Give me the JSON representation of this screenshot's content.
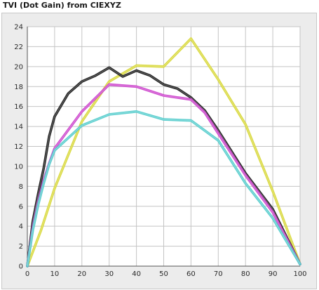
{
  "title": "TVI (Dot Gain) from CIEXYZ",
  "chart_data": {
    "type": "line",
    "title": "TVI (Dot Gain) from CIEXYZ",
    "xlabel": "",
    "ylabel": "",
    "xlim": [
      0,
      100
    ],
    "ylim": [
      0,
      24
    ],
    "xticks": [
      0,
      10,
      20,
      30,
      40,
      50,
      60,
      70,
      80,
      90,
      100
    ],
    "yticks": [
      0,
      2,
      4,
      6,
      8,
      10,
      12,
      14,
      16,
      18,
      20,
      22,
      24
    ],
    "grid": true,
    "legend": "none",
    "series": [
      {
        "color": "#d8d83a",
        "x": [
          0,
          5,
          10,
          20,
          30,
          40,
          50,
          60,
          70,
          80,
          90,
          100
        ],
        "y": [
          0,
          3.6,
          7.8,
          14.5,
          18.5,
          20.1,
          20.0,
          22.8,
          18.7,
          14.2,
          7.5,
          0.2
        ]
      },
      {
        "color": "#1a1a1a",
        "x": [
          0,
          2,
          4,
          6,
          8,
          10,
          15,
          20,
          25,
          30,
          35,
          40,
          45,
          50,
          55,
          60,
          65,
          70,
          80,
          90,
          100
        ],
        "y": [
          0,
          4.5,
          7.3,
          9.8,
          13.0,
          15.0,
          17.3,
          18.5,
          19.1,
          19.9,
          19.0,
          19.6,
          19.1,
          18.2,
          17.8,
          16.9,
          15.6,
          13.6,
          9.3,
          5.7,
          0.2
        ]
      },
      {
        "color": "#cc44cc",
        "x": [
          0,
          2,
          4,
          6,
          8,
          10,
          20,
          30,
          40,
          50,
          60,
          65,
          70,
          80,
          90,
          100
        ],
        "y": [
          0,
          3.9,
          6.5,
          8.6,
          10.3,
          11.8,
          15.5,
          18.2,
          18.0,
          17.1,
          16.7,
          15.4,
          13.3,
          9.1,
          5.4,
          0.2
        ]
      },
      {
        "color": "#55cccc",
        "x": [
          0,
          2,
          4,
          6,
          8,
          10,
          20,
          30,
          40,
          50,
          60,
          70,
          80,
          90,
          100
        ],
        "y": [
          0,
          3.6,
          6.2,
          8.3,
          10.2,
          11.6,
          14.1,
          15.2,
          15.5,
          14.7,
          14.6,
          12.6,
          8.3,
          4.8,
          0.2
        ]
      }
    ]
  }
}
